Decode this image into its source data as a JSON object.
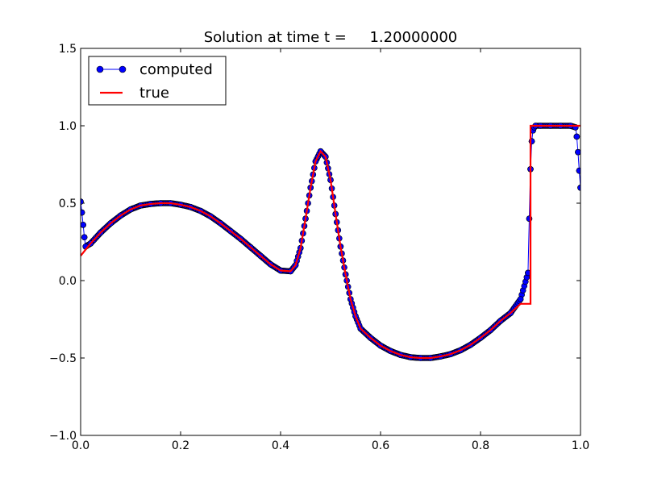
{
  "chart_data": {
    "type": "line",
    "title": "Solution at time t =     1.20000000",
    "xlabel": "",
    "ylabel": "",
    "xlim": [
      0.0,
      1.0
    ],
    "ylim": [
      -1.0,
      1.5
    ],
    "x_ticks": [
      "0.0",
      "0.2",
      "0.4",
      "0.6",
      "0.8",
      "1.0"
    ],
    "y_ticks": [
      "−1.0",
      "−0.5",
      "0.0",
      "0.5",
      "1.0",
      "1.5"
    ],
    "grid": false,
    "legend_position": "top-left",
    "series": [
      {
        "name": "computed",
        "style": "line with circle markers",
        "color": "#0000ff",
        "marker_edge": "#000000",
        "x": [
          0.0,
          0.0025,
          0.005,
          0.0075,
          0.01,
          0.02,
          0.04,
          0.06,
          0.08,
          0.1,
          0.12,
          0.14,
          0.16,
          0.18,
          0.2,
          0.22,
          0.24,
          0.26,
          0.28,
          0.3,
          0.32,
          0.34,
          0.36,
          0.38,
          0.4,
          0.42,
          0.43,
          0.44,
          0.45,
          0.46,
          0.47,
          0.48,
          0.49,
          0.5,
          0.51,
          0.52,
          0.53,
          0.54,
          0.55,
          0.56,
          0.58,
          0.6,
          0.62,
          0.64,
          0.66,
          0.68,
          0.7,
          0.72,
          0.74,
          0.76,
          0.78,
          0.8,
          0.82,
          0.84,
          0.86,
          0.88,
          0.895,
          0.8975,
          0.9,
          0.9025,
          0.905,
          0.9075,
          0.91,
          0.92,
          0.94,
          0.96,
          0.98,
          0.99,
          0.9925,
          0.995,
          0.9975,
          1.0
        ],
        "y": [
          0.51,
          0.44,
          0.36,
          0.28,
          0.22,
          0.24,
          0.31,
          0.37,
          0.42,
          0.46,
          0.485,
          0.495,
          0.5,
          0.5,
          0.49,
          0.475,
          0.45,
          0.415,
          0.37,
          0.32,
          0.27,
          0.215,
          0.16,
          0.105,
          0.065,
          0.06,
          0.1,
          0.21,
          0.4,
          0.6,
          0.77,
          0.835,
          0.8,
          0.65,
          0.43,
          0.22,
          0.04,
          -0.12,
          -0.23,
          -0.31,
          -0.37,
          -0.42,
          -0.455,
          -0.48,
          -0.495,
          -0.5,
          -0.5,
          -0.49,
          -0.475,
          -0.45,
          -0.415,
          -0.37,
          -0.32,
          -0.26,
          -0.21,
          -0.12,
          0.05,
          0.4,
          0.72,
          0.9,
          0.97,
          0.99,
          1.0,
          1.0,
          1.0,
          1.0,
          1.0,
          0.99,
          0.93,
          0.83,
          0.71,
          0.6
        ]
      },
      {
        "name": "true",
        "style": "line",
        "color": "#ff0000",
        "x": [
          0.0,
          0.02,
          0.04,
          0.06,
          0.08,
          0.1,
          0.12,
          0.14,
          0.16,
          0.18,
          0.2,
          0.22,
          0.24,
          0.26,
          0.28,
          0.3,
          0.32,
          0.34,
          0.36,
          0.38,
          0.4,
          0.42,
          0.43,
          0.44,
          0.45,
          0.46,
          0.47,
          0.48,
          0.49,
          0.5,
          0.51,
          0.52,
          0.53,
          0.54,
          0.55,
          0.56,
          0.58,
          0.6,
          0.62,
          0.64,
          0.66,
          0.68,
          0.7,
          0.72,
          0.74,
          0.76,
          0.78,
          0.8,
          0.82,
          0.84,
          0.86,
          0.88,
          0.9,
          0.9,
          0.95,
          1.0
        ],
        "y": [
          0.16,
          0.24,
          0.31,
          0.37,
          0.42,
          0.46,
          0.485,
          0.495,
          0.5,
          0.5,
          0.49,
          0.475,
          0.45,
          0.415,
          0.37,
          0.32,
          0.27,
          0.215,
          0.16,
          0.105,
          0.065,
          0.06,
          0.1,
          0.21,
          0.4,
          0.6,
          0.77,
          0.835,
          0.8,
          0.65,
          0.43,
          0.22,
          0.04,
          -0.12,
          -0.23,
          -0.31,
          -0.37,
          -0.42,
          -0.455,
          -0.48,
          -0.495,
          -0.5,
          -0.5,
          -0.49,
          -0.475,
          -0.45,
          -0.415,
          -0.37,
          -0.32,
          -0.26,
          -0.21,
          -0.15,
          -0.15,
          1.0,
          1.0,
          1.0
        ]
      }
    ]
  }
}
